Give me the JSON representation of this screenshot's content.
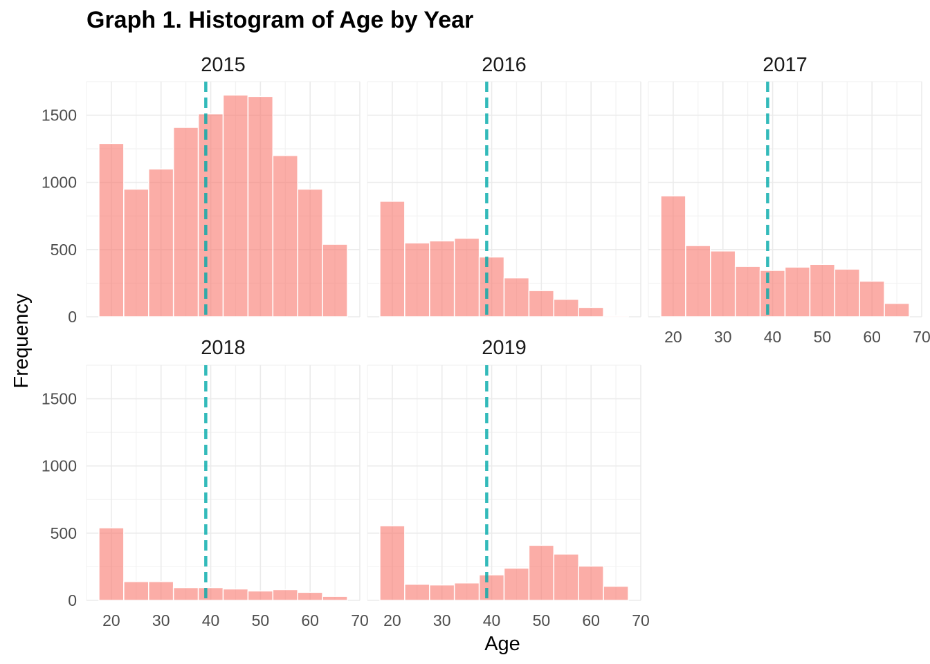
{
  "title": "Graph 1. Histogram of Age by Year",
  "chart_data": {
    "type": "bar",
    "title": "Graph 1. Histogram of Age by Year",
    "xlabel": "Age",
    "ylabel": "Frequency",
    "xlim": [
      15,
      70
    ],
    "ylim": [
      0,
      1750
    ],
    "x_ticks": [
      20,
      30,
      40,
      50,
      60,
      70
    ],
    "y_ticks": [
      0,
      500,
      1000,
      1500
    ],
    "bins": [
      [
        17.5,
        22.5
      ],
      [
        22.5,
        27.5
      ],
      [
        27.5,
        32.5
      ],
      [
        32.5,
        37.5
      ],
      [
        37.5,
        42.5
      ],
      [
        42.5,
        47.5
      ],
      [
        47.5,
        52.5
      ],
      [
        52.5,
        57.5
      ],
      [
        57.5,
        62.5
      ],
      [
        62.5,
        67.5
      ]
    ],
    "mean_line_age": 39,
    "grid": true,
    "bar_color": "#F8766D",
    "line_color": "#00A9A9",
    "panels": [
      {
        "label": "2015",
        "values": [
          1290,
          950,
          1100,
          1410,
          1510,
          1650,
          1640,
          1200,
          950,
          540
        ]
      },
      {
        "label": "2016",
        "values": [
          860,
          550,
          565,
          585,
          445,
          290,
          195,
          130,
          70,
          8
        ]
      },
      {
        "label": "2017",
        "values": [
          900,
          530,
          490,
          375,
          345,
          370,
          390,
          355,
          265,
          100
        ]
      },
      {
        "label": "2018",
        "values": [
          540,
          140,
          140,
          95,
          95,
          85,
          70,
          80,
          60,
          30
        ]
      },
      {
        "label": "2019",
        "values": [
          555,
          120,
          115,
          130,
          190,
          240,
          410,
          345,
          255,
          105
        ]
      }
    ]
  }
}
